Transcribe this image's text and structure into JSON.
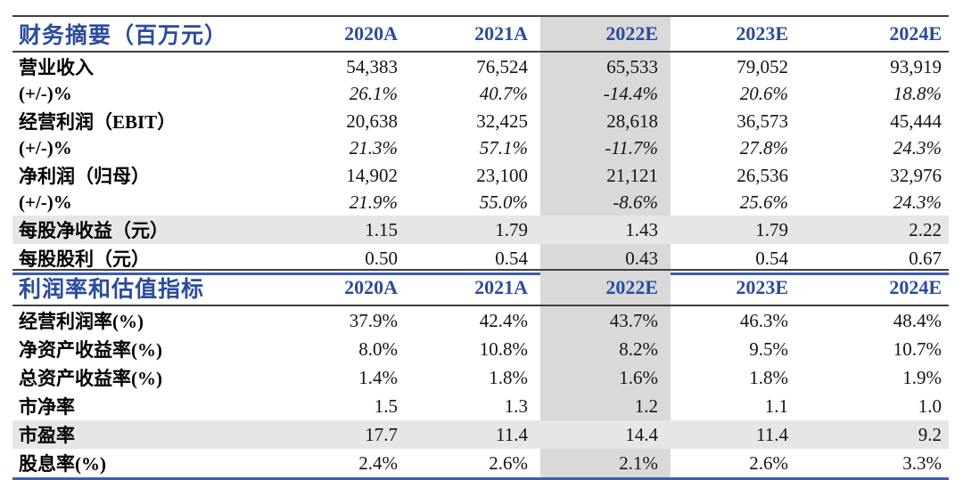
{
  "colors": {
    "title_blue": "#2B4C9C",
    "line_blue": "#3F5EA9",
    "line_dark": "#3f3f3f",
    "shade_col": "#D9D9D9",
    "shade_row": "#E7E6E6"
  },
  "highlight_column": "2022E",
  "tables": [
    {
      "title": "财务摘要（百万元）",
      "columns": [
        "2020A",
        "2021A",
        "2022E",
        "2023E",
        "2024E"
      ],
      "rows": [
        {
          "label": "营业收入",
          "values": [
            "54,383",
            "76,524",
            "65,533",
            "79,052",
            "93,919"
          ]
        },
        {
          "label": "(+/-)%",
          "values": [
            "26.1%",
            "40.7%",
            "-14.4%",
            "20.6%",
            "18.8%"
          ]
        },
        {
          "label": "经营利润（EBIT）",
          "values": [
            "20,638",
            "32,425",
            "28,618",
            "36,573",
            "45,444"
          ]
        },
        {
          "label": "(+/-)%",
          "values": [
            "21.3%",
            "57.1%",
            "-11.7%",
            "27.8%",
            "24.3%"
          ]
        },
        {
          "label": "净利润（归母）",
          "values": [
            "14,902",
            "23,100",
            "21,121",
            "26,536",
            "32,976"
          ]
        },
        {
          "label": "(+/-)%",
          "values": [
            "21.9%",
            "55.0%",
            "-8.6%",
            "25.6%",
            "24.3%"
          ]
        },
        {
          "label": "每股净收益（元）",
          "values": [
            "1.15",
            "1.79",
            "1.43",
            "1.79",
            "2.22"
          ]
        },
        {
          "label": "每股股利（元）",
          "values": [
            "0.50",
            "0.54",
            "0.43",
            "0.54",
            "0.67"
          ]
        }
      ]
    },
    {
      "title": "利润率和估值指标",
      "columns": [
        "2020A",
        "2021A",
        "2022E",
        "2023E",
        "2024E"
      ],
      "rows": [
        {
          "label": "经营利润率(%)",
          "values": [
            "37.9%",
            "42.4%",
            "43.7%",
            "46.3%",
            "48.4%"
          ]
        },
        {
          "label": "净资产收益率(%)",
          "values": [
            "8.0%",
            "10.8%",
            "8.2%",
            "9.5%",
            "10.7%"
          ]
        },
        {
          "label": "总资产收益率(%)",
          "values": [
            "1.4%",
            "1.8%",
            "1.6%",
            "1.8%",
            "1.9%"
          ]
        },
        {
          "label": "市净率",
          "values": [
            "1.5",
            "1.3",
            "1.2",
            "1.1",
            "1.0"
          ]
        },
        {
          "label": "市盈率",
          "values": [
            "17.7",
            "11.4",
            "14.4",
            "11.4",
            "9.2"
          ]
        },
        {
          "label": "股息率(%)",
          "values": [
            "2.4%",
            "2.6%",
            "2.1%",
            "2.6%",
            "3.3%"
          ]
        }
      ]
    }
  ]
}
